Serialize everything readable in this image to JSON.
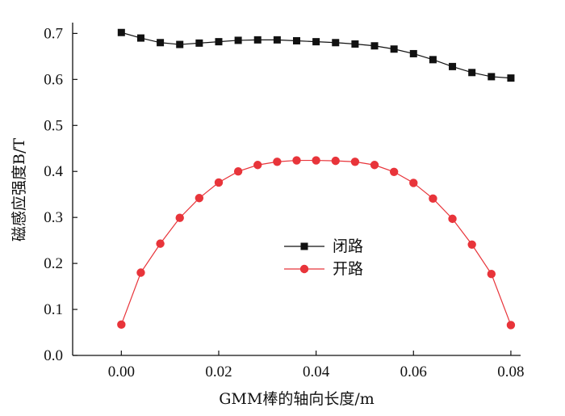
{
  "chart_data": {
    "type": "line",
    "xlabel": "GMM棒的轴向长度/m",
    "ylabel": "磁感应强度B/T",
    "xlim": [
      -0.01,
      0.082
    ],
    "ylim": [
      0.0,
      0.72
    ],
    "x_ticks": [
      0.0,
      0.02,
      0.04,
      0.06,
      0.08
    ],
    "x_tick_labels": [
      "0.00",
      "0.02",
      "0.04",
      "0.06",
      "0.08"
    ],
    "y_ticks": [
      0.0,
      0.1,
      0.2,
      0.3,
      0.4,
      0.5,
      0.6,
      0.7
    ],
    "y_tick_labels": [
      "0.0",
      "0.1",
      "0.2",
      "0.3",
      "0.4",
      "0.5",
      "0.6",
      "0.7"
    ],
    "grid": false,
    "legend_position": "center-right",
    "x": [
      0.0,
      0.004,
      0.008,
      0.012,
      0.016,
      0.02,
      0.024,
      0.028,
      0.032,
      0.036,
      0.04,
      0.044,
      0.048,
      0.052,
      0.056,
      0.06,
      0.064,
      0.068,
      0.072,
      0.076,
      0.08
    ],
    "series": [
      {
        "name": "闭路",
        "marker": "square",
        "color": "#111111",
        "values": [
          0.702,
          0.69,
          0.68,
          0.676,
          0.679,
          0.682,
          0.685,
          0.686,
          0.686,
          0.684,
          0.682,
          0.68,
          0.677,
          0.673,
          0.666,
          0.656,
          0.643,
          0.628,
          0.615,
          0.606,
          0.603
        ]
      },
      {
        "name": "开路",
        "marker": "circle",
        "color": "#e8343a",
        "values": [
          0.067,
          0.18,
          0.243,
          0.299,
          0.342,
          0.376,
          0.4,
          0.414,
          0.421,
          0.424,
          0.424,
          0.423,
          0.421,
          0.414,
          0.399,
          0.375,
          0.341,
          0.297,
          0.241,
          0.177,
          0.066
        ]
      }
    ]
  }
}
